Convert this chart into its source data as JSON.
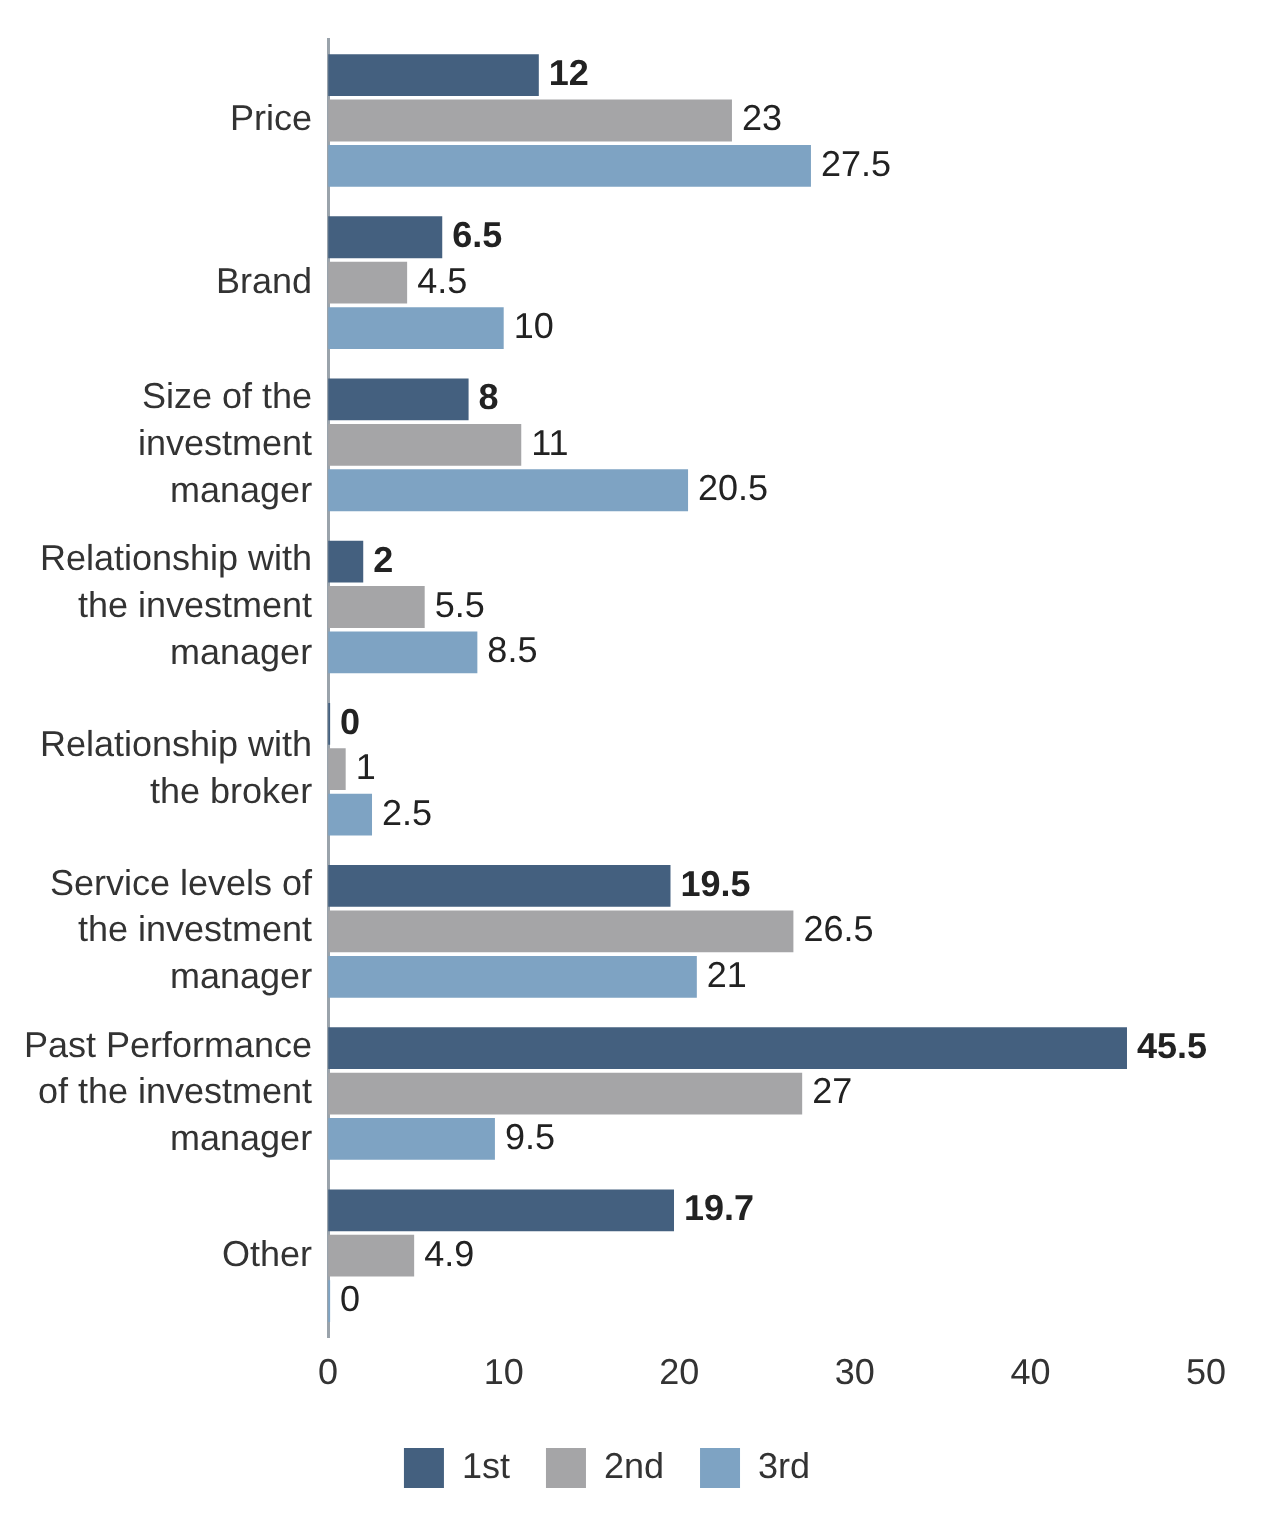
{
  "chart_data": {
    "type": "bar",
    "orientation": "horizontal",
    "categories": [
      "Price",
      "Brand",
      "Size of the investment manager",
      "Relationship with the investment manager",
      "Relationship with the broker",
      "Service levels of the investment manager",
      "Past Performance of the investment manager",
      "Other"
    ],
    "series": [
      {
        "name": "1st",
        "color": "#44607f",
        "values": [
          12,
          6.5,
          8,
          2,
          0,
          19.5,
          45.5,
          19.7
        ]
      },
      {
        "name": "2nd",
        "color": "#a5a5a7",
        "values": [
          23,
          4.5,
          11,
          5.5,
          1,
          26.5,
          27,
          4.9
        ]
      },
      {
        "name": "3rd",
        "color": "#7ea3c3",
        "values": [
          27.5,
          10,
          20.5,
          8.5,
          2.5,
          21,
          9.5,
          0
        ]
      }
    ],
    "xlim": [
      0,
      50
    ],
    "xticks": [
      0,
      10,
      20,
      30,
      40,
      50
    ],
    "grid": false,
    "legend": "bottom",
    "data_labels": true
  }
}
